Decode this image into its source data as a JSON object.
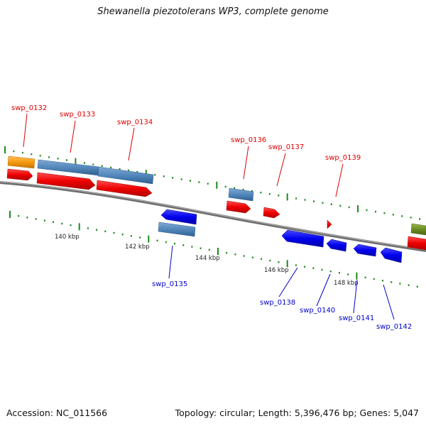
{
  "title": "Shewanella piezotolerans WP3, complete genome",
  "accession_text": "Accession: NC_011566",
  "summary_text": "Topology: circular; Length: 5,396,476 bp; Genes: 5,047",
  "colors": {
    "forward_gene": "#ee0000",
    "reverse_gene": "#0000ee",
    "steelblue_feature": "#4f84b8",
    "orange_feature": "#f59a10",
    "olive_feature": "#6b8e23",
    "backbone": "#7a7a7a",
    "tick": "#1a8a1a",
    "label_forward": "#dd0000",
    "label_reverse": "#0000cc"
  },
  "scale_labels": [
    "140 kbp",
    "142 kbp",
    "144 kbp",
    "146 kbp",
    "148 kbp"
  ],
  "gene_labels_forward": [
    "swp_0132",
    "swp_0133",
    "swp_0134",
    "swp_0136",
    "swp_0137",
    "swp_0139"
  ],
  "gene_labels_reverse": [
    "swp_0135",
    "swp_0138",
    "swp_0140",
    "swp_0141",
    "swp_0142"
  ]
}
